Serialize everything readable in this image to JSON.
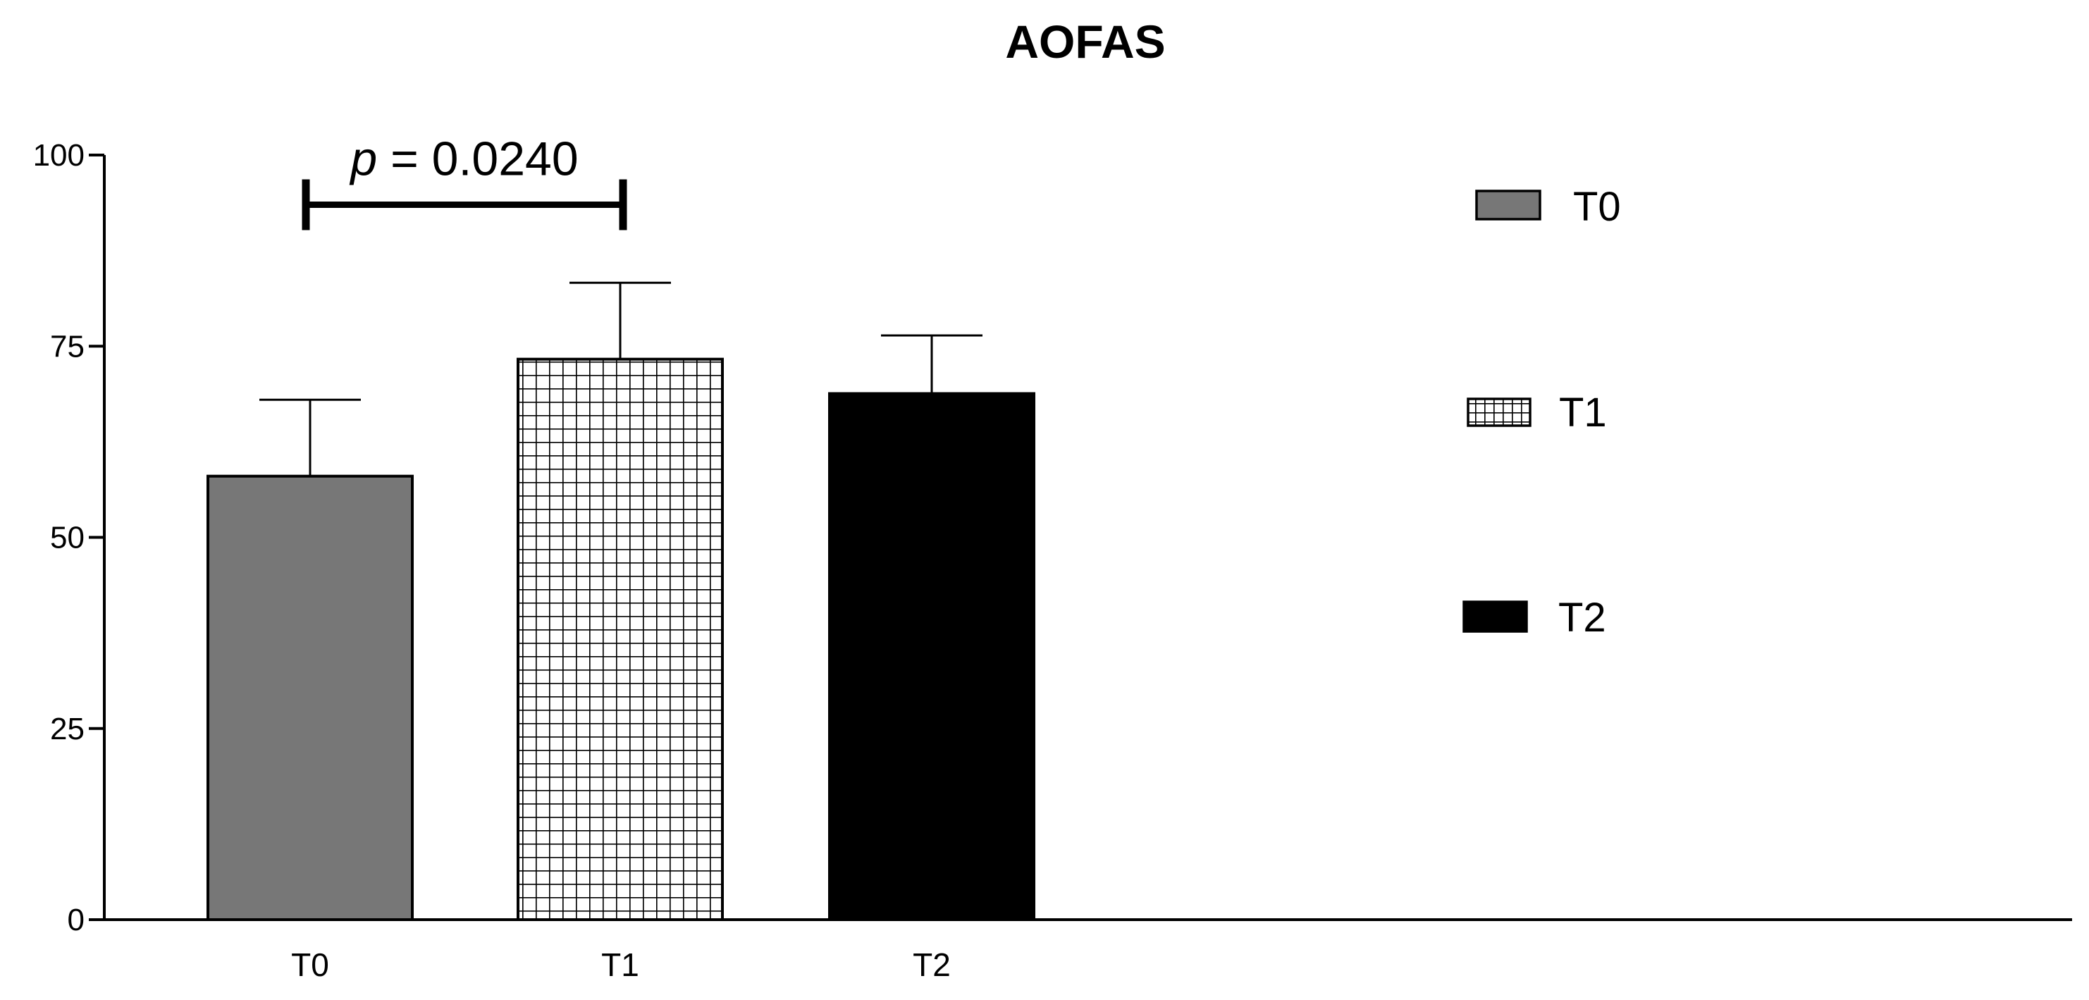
{
  "chart_data": {
    "type": "bar",
    "title": "AOFAS",
    "xlabel": "",
    "ylabel": "",
    "ylim": [
      0,
      100
    ],
    "yticks": [
      "0",
      "25",
      "50",
      "75",
      "100"
    ],
    "categories": [
      "T0",
      "T1",
      "T2"
    ],
    "values": [
      58,
      73.3,
      68.8
    ],
    "errors": [
      10,
      10,
      7.6
    ],
    "fills": [
      {
        "color": "#777777",
        "pattern": "solid"
      },
      {
        "color": "#ffffff",
        "pattern": "grid"
      },
      {
        "color": "#000000",
        "pattern": "solid"
      }
    ],
    "legend": {
      "position": "right",
      "items": [
        "T0",
        "T1",
        "T2"
      ]
    },
    "annotation": {
      "italic": "p",
      "rest": " = 0.0240",
      "from": "T0",
      "to": "T1",
      "y": 93.5
    },
    "grid": false
  }
}
